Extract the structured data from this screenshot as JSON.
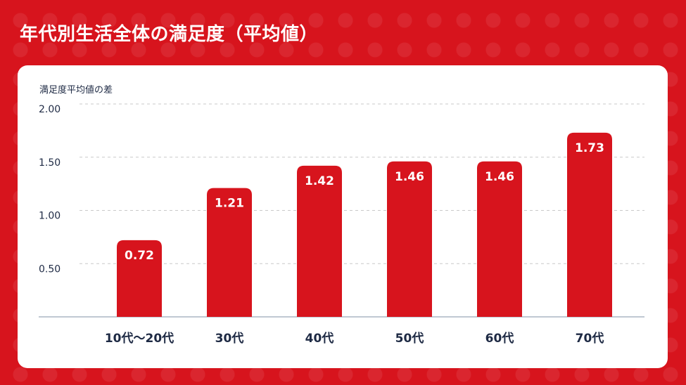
{
  "page": {
    "title": "年代別生活全体の満足度（平均値）"
  },
  "colors": {
    "background": "#d7141d",
    "bar": "#d7141d",
    "card": "#ffffff",
    "text": "#1e2a44",
    "grid": "#c9c9c9"
  },
  "chart_data": {
    "type": "bar",
    "title": "年代別生活全体の満足度（平均値）",
    "ylabel": "満足度平均値の差",
    "xlabel": "",
    "categories": [
      "10代〜20代",
      "30代",
      "40代",
      "50代",
      "60代",
      "70代"
    ],
    "values": [
      0.72,
      1.21,
      1.42,
      1.46,
      1.46,
      1.73
    ],
    "value_labels": [
      "0.72",
      "1.21",
      "1.42",
      "1.46",
      "1.46",
      "1.73"
    ],
    "ylim": [
      0,
      2
    ],
    "yticks": [
      0.5,
      1.0,
      1.5,
      2.0
    ],
    "ytick_labels": [
      "0.50",
      "1.00",
      "1.50",
      "2.00"
    ],
    "grid": true,
    "legend": false
  }
}
